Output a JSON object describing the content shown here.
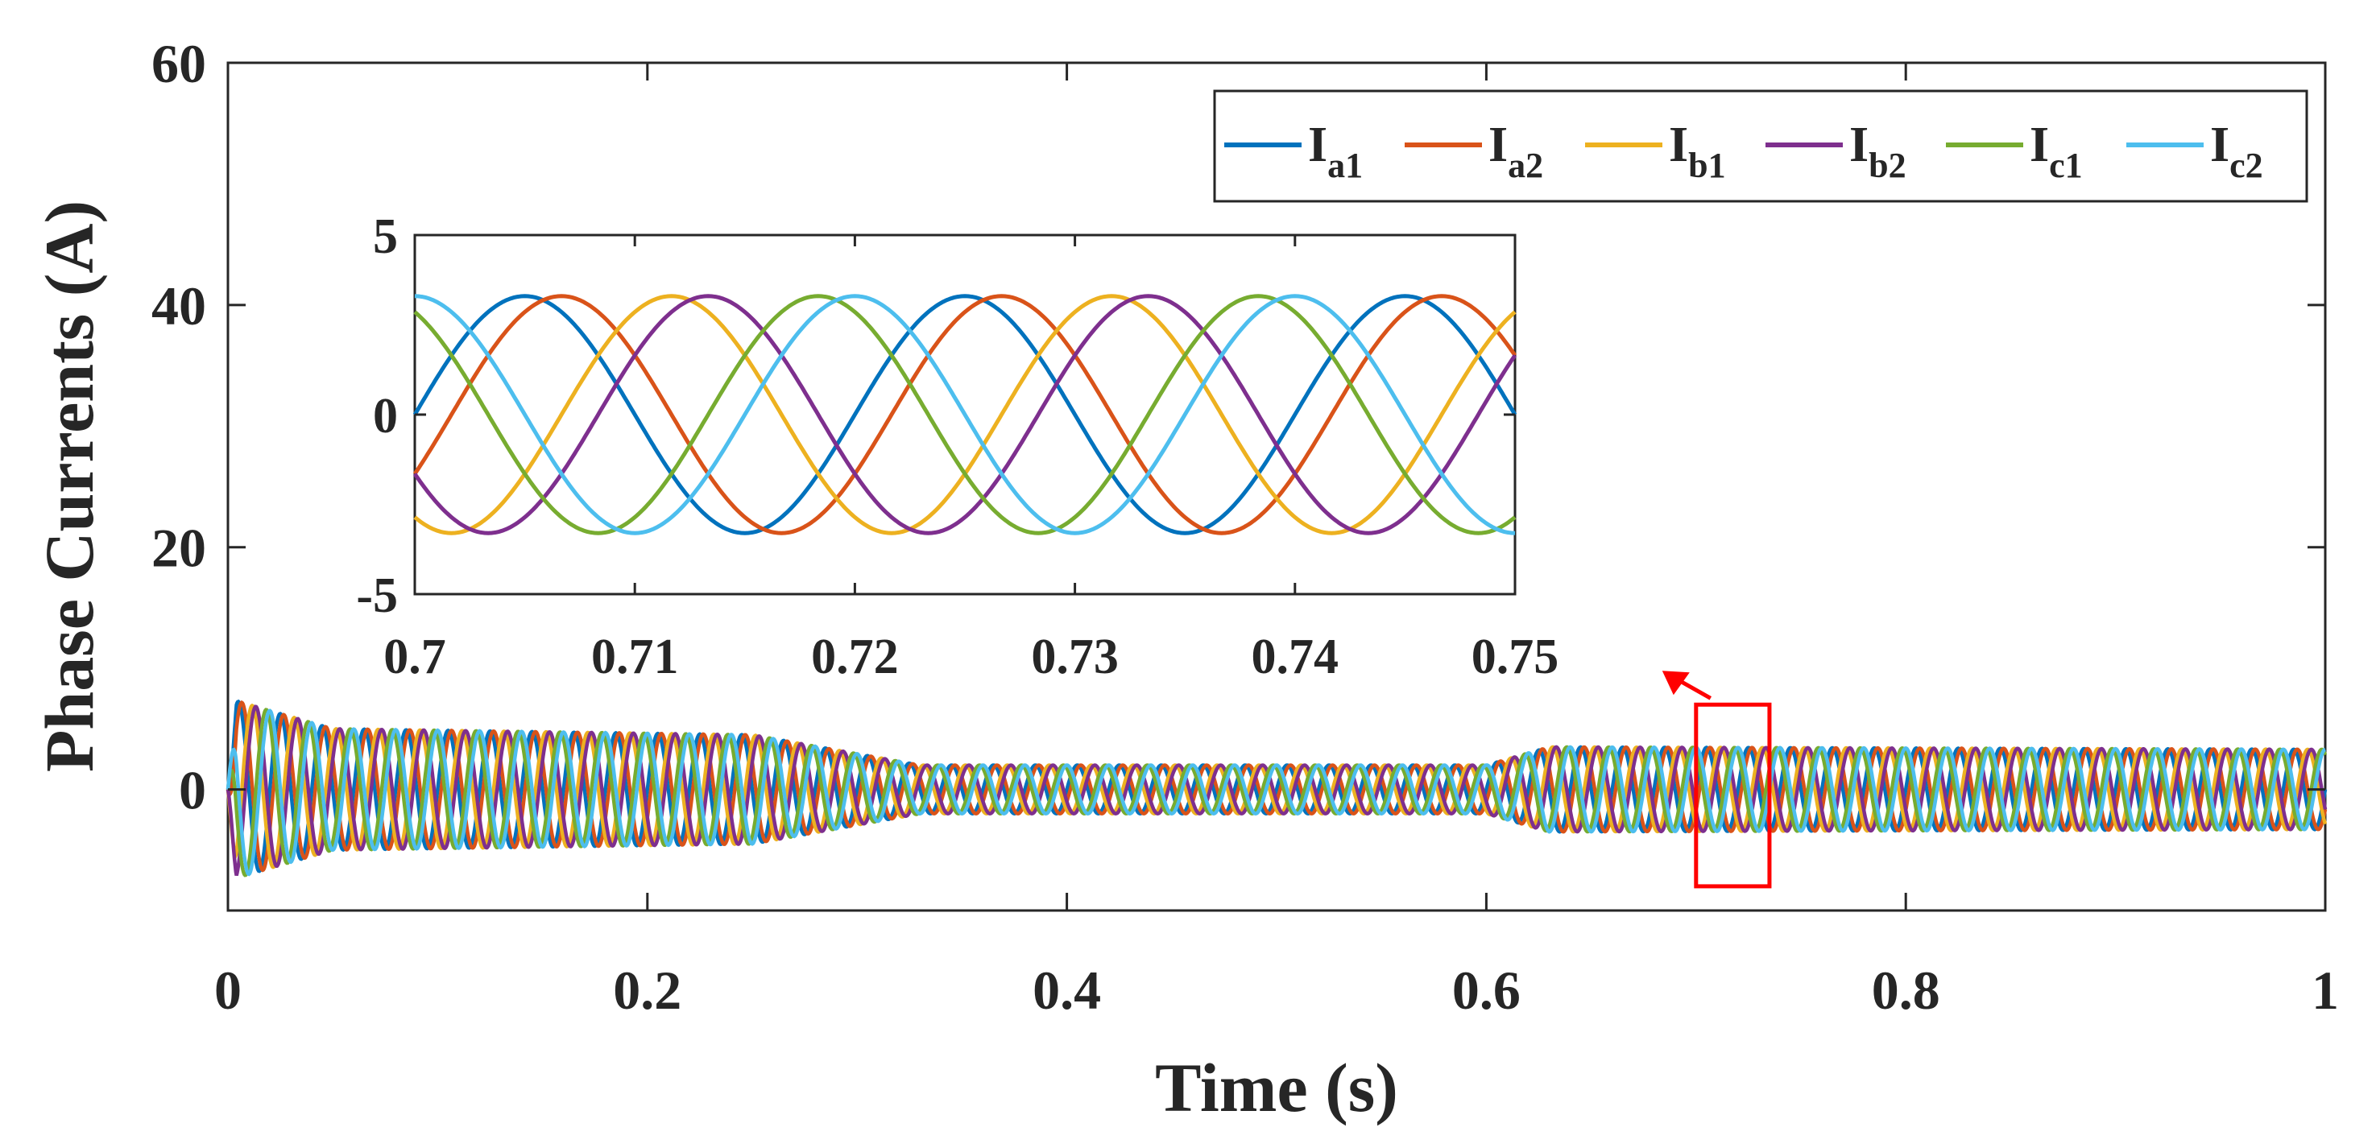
{
  "chart_data": {
    "type": "line",
    "xlabel": "Time (s)",
    "ylabel": "Phase Currents (A)",
    "xlim": [
      0,
      1
    ],
    "ylim": [
      -10,
      60
    ],
    "xticks": [
      "0",
      "0.2",
      "0.4",
      "0.6",
      "0.8",
      "1"
    ],
    "yticks": [
      "0",
      "20",
      "40",
      "60"
    ],
    "grid": false,
    "legend_position": "top-right",
    "series": [
      {
        "name": "I",
        "subscript": "a1",
        "color": "#0072BD",
        "phase_deg": 0
      },
      {
        "name": "I",
        "subscript": "a2",
        "color": "#D95319",
        "phase_deg": -30
      },
      {
        "name": "I",
        "subscript": "b1",
        "color": "#EDB120",
        "phase_deg": -120
      },
      {
        "name": "I",
        "subscript": "b2",
        "color": "#7E2F8E",
        "phase_deg": -150
      },
      {
        "name": "I",
        "subscript": "c1",
        "color": "#77AC30",
        "phase_deg": 120
      },
      {
        "name": "I",
        "subscript": "c2",
        "color": "#4DBEEE",
        "phase_deg": 90
      }
    ],
    "signal": {
      "frequency_hz": 50,
      "amplitude_envelope": [
        {
          "t": 0.0,
          "amp": 7.5
        },
        {
          "t": 0.05,
          "amp": 5.0
        },
        {
          "t": 0.25,
          "amp": 4.5
        },
        {
          "t": 0.33,
          "amp": 2.0
        },
        {
          "t": 0.6,
          "amp": 2.0
        },
        {
          "t": 0.63,
          "amp": 3.5
        },
        {
          "t": 1.0,
          "amp": 3.3
        }
      ]
    },
    "zoom_box": {
      "x_range": [
        0.7,
        0.735
      ],
      "y_range": [
        -8,
        7
      ],
      "color": "#FF0000"
    },
    "inset": {
      "xlim": [
        0.7,
        0.75
      ],
      "ylim": [
        -5,
        5
      ],
      "xticks": [
        "0.7",
        "0.71",
        "0.72",
        "0.73",
        "0.74",
        "0.75"
      ],
      "yticks": [
        "-5",
        "0",
        "5"
      ],
      "amplitude": 3.3
    }
  }
}
